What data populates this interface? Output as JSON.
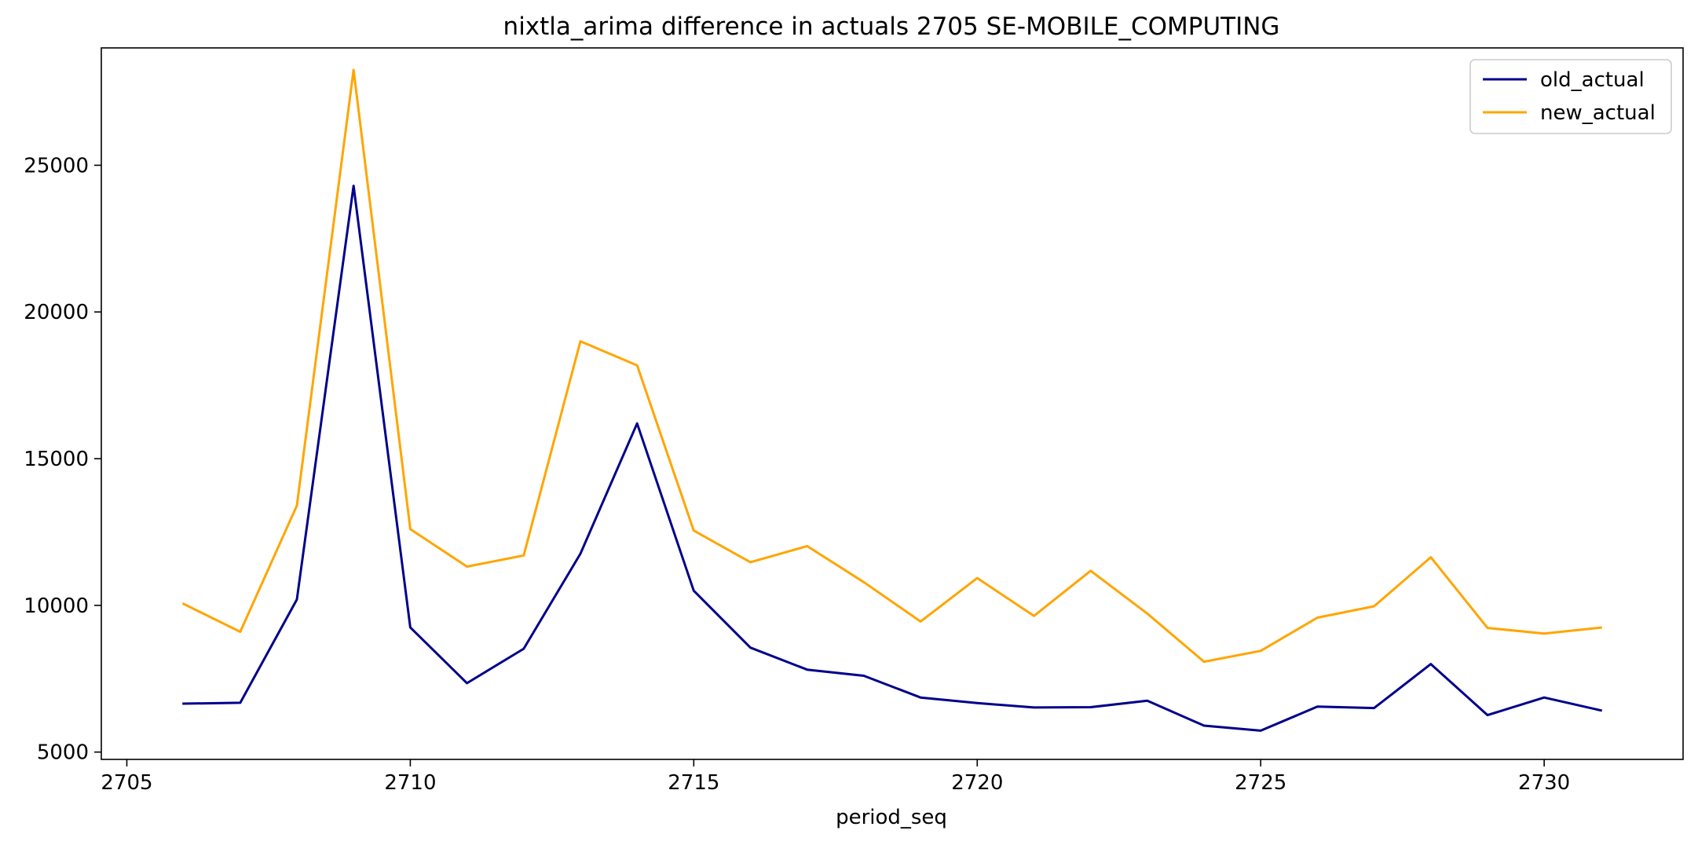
{
  "chart_data": {
    "type": "line",
    "title": "nixtla_arima difference in actuals 2705 SE-MOBILE_COMPUTING",
    "xlabel": "period_seq",
    "ylabel": "",
    "xlim": [
      2704.55,
      2732.45
    ],
    "ylim": [
      4750,
      29000
    ],
    "xticks": [
      2705,
      2710,
      2715,
      2720,
      2725,
      2730
    ],
    "yticks": [
      5000,
      10000,
      15000,
      20000,
      25000
    ],
    "grid": false,
    "legend_position": "top-right",
    "x": [
      2706,
      2707,
      2708,
      2709,
      2710,
      2711,
      2712,
      2713,
      2714,
      2715,
      2716,
      2717,
      2718,
      2719,
      2720,
      2721,
      2722,
      2723,
      2724,
      2725,
      2726,
      2727,
      2728,
      2729,
      2730,
      2731
    ],
    "series": [
      {
        "name": "old_actual",
        "color": "#00008b",
        "values": [
          6650,
          6680,
          10200,
          24300,
          9250,
          7350,
          8520,
          11760,
          16200,
          10500,
          8560,
          7810,
          7600,
          6860,
          6670,
          6520,
          6530,
          6750,
          5900,
          5730,
          6550,
          6500,
          8000,
          6260,
          6860,
          6420
        ]
      },
      {
        "name": "new_actual",
        "color": "#ffa500",
        "values": [
          10050,
          9100,
          13400,
          28250,
          12600,
          11320,
          11700,
          19000,
          18180,
          12550,
          11470,
          12020,
          10790,
          9450,
          10930,
          9640,
          11180,
          9720,
          8080,
          8450,
          9580,
          9970,
          11640,
          9230,
          9040,
          9240
        ]
      }
    ]
  }
}
